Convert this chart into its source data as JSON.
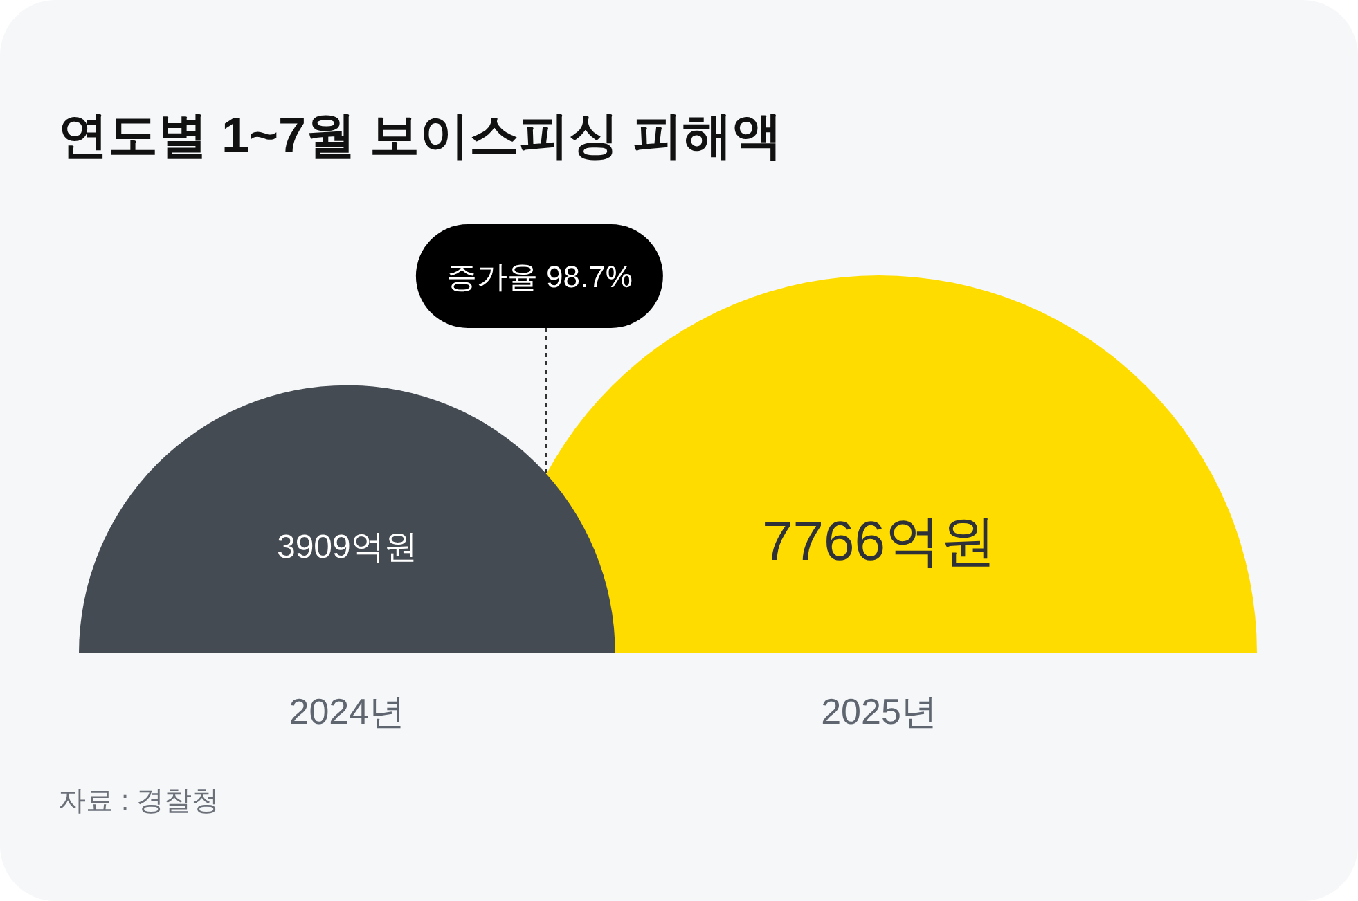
{
  "chart_data": {
    "type": "other",
    "title": "연도별 1~7월 보이스피싱 피해액",
    "categories": [
      "2024년",
      "2025년"
    ],
    "values": [
      3909,
      7766
    ],
    "value_labels": [
      "3909억원",
      "7766억원"
    ],
    "colors": [
      "#454b52",
      "#ffdc00"
    ],
    "annotations": [
      "증가율 98.7%",
      "자료 : 경찰청"
    ]
  }
}
